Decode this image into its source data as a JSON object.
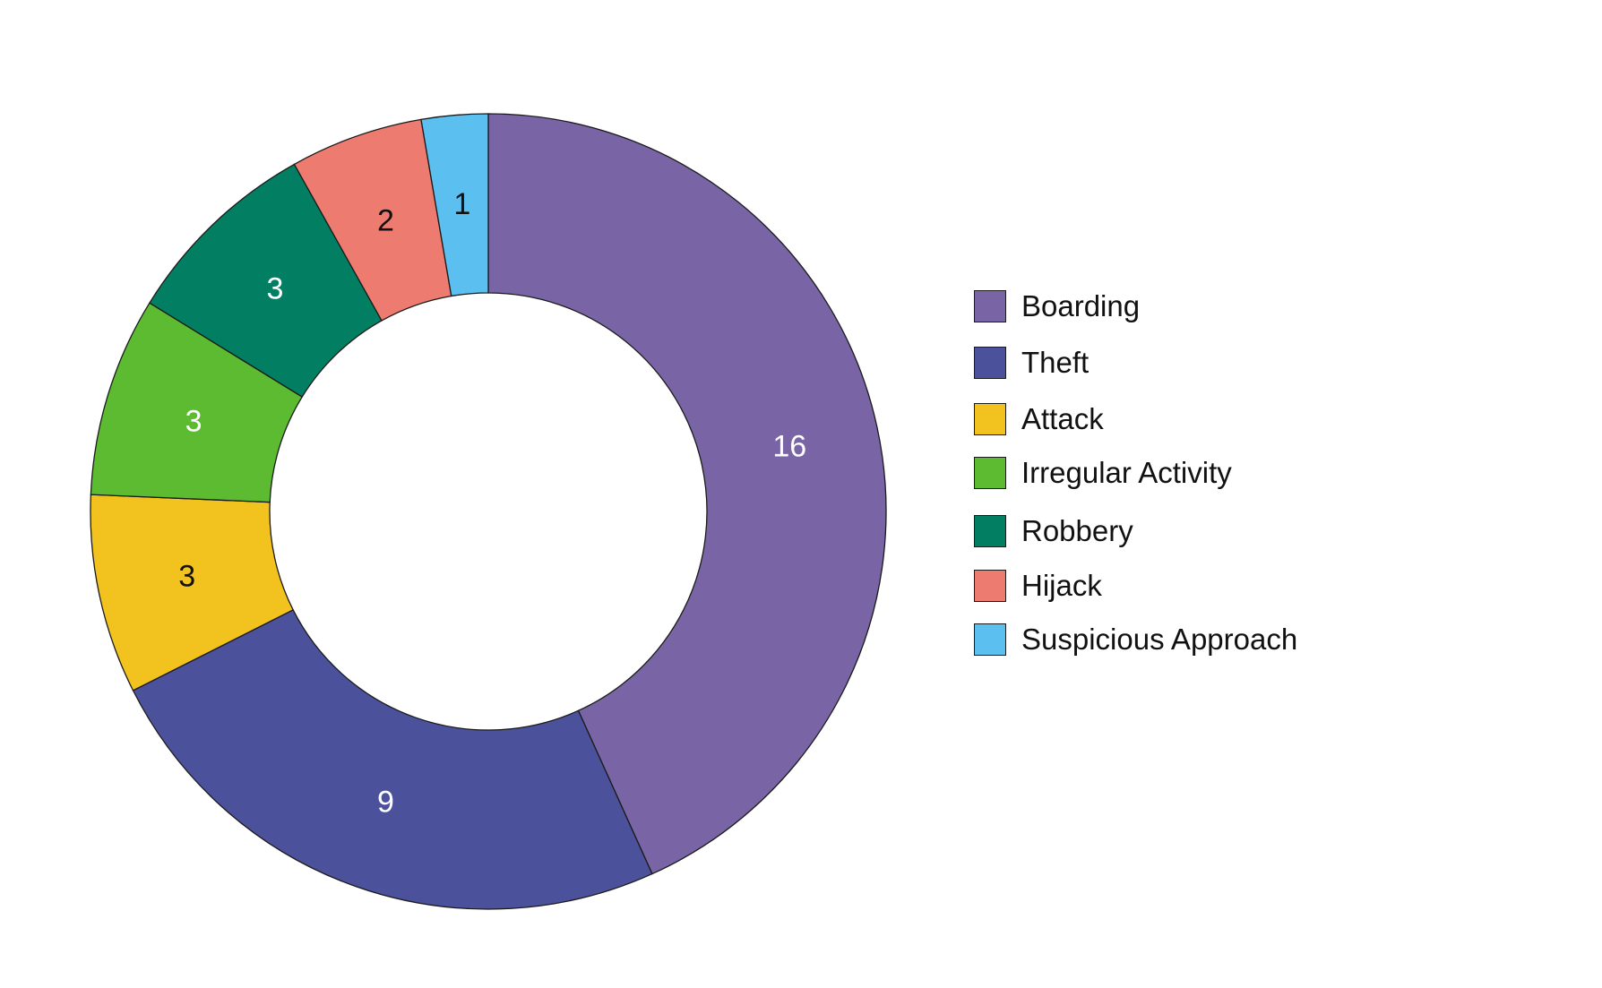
{
  "chart_data": {
    "type": "pie",
    "variant": "donut",
    "title": "",
    "legend_position": "right",
    "slices": [
      {
        "label": "Boarding",
        "value": 16,
        "color": "#7965a5",
        "label_color": "#ffffff"
      },
      {
        "label": "Theft",
        "value": 9,
        "color": "#4c519c",
        "label_color": "#ffffff"
      },
      {
        "label": "Attack",
        "value": 3,
        "color": "#f2c31e",
        "label_color": "#111111"
      },
      {
        "label": "Irregular Activity",
        "value": 3,
        "color": "#5cbb30",
        "label_color": "#ffffff"
      },
      {
        "label": "Robbery",
        "value": 3,
        "color": "#027f62",
        "label_color": "#ffffff"
      },
      {
        "label": "Hijack",
        "value": 2,
        "color": "#ed7b70",
        "label_color": "#111111"
      },
      {
        "label": "Suspicious Approach",
        "value": 1,
        "color": "#5bbfef",
        "label_color": "#111111"
      }
    ]
  }
}
